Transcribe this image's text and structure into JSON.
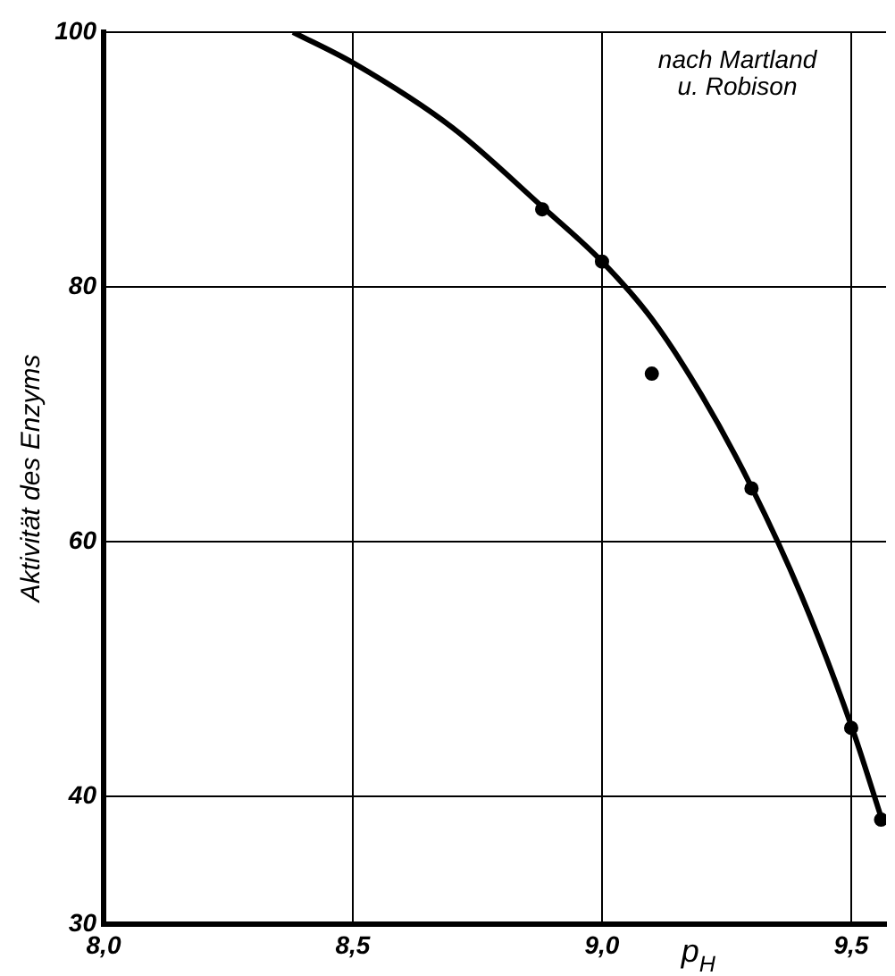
{
  "chart_data": {
    "type": "scatter",
    "xlabel": "p$_{H}$",
    "ylabel": "Aktivität des Enzyms",
    "annotations": [
      "nach Martland u. Robison"
    ],
    "series": [
      {
        "color": "#000000",
        "x": [
          8.88,
          9.0,
          9.1,
          9.3,
          9.5,
          9.56
        ],
        "values": [
          86.1,
          82.0,
          73.2,
          64.2,
          45.4,
          38.2
        ]
      },
      {
        "type": "line",
        "color": "#000000",
        "marker": "none",
        "x": [
          8.38,
          8.5,
          8.7,
          8.88,
          9.0,
          9.1,
          9.2,
          9.3,
          9.4,
          9.5,
          9.56
        ],
        "values": [
          100,
          97.6,
          92.5,
          86.3,
          82.0,
          77.5,
          71.5,
          64.3,
          55.8,
          45.6,
          38.4
        ]
      }
    ],
    "xlim": [
      8.0,
      9.57
    ],
    "ylim": [
      30,
      100
    ],
    "xticks": [
      {
        "value": 8.0,
        "label": "8,0"
      },
      {
        "value": 8.5,
        "label": "8,5"
      },
      {
        "value": 9.0,
        "label": "9,0"
      },
      {
        "value": 9.5,
        "label": "9,5"
      }
    ],
    "yticks": [
      30,
      40,
      60,
      80,
      100
    ],
    "grid": true,
    "marker": "circle",
    "legend": false
  }
}
